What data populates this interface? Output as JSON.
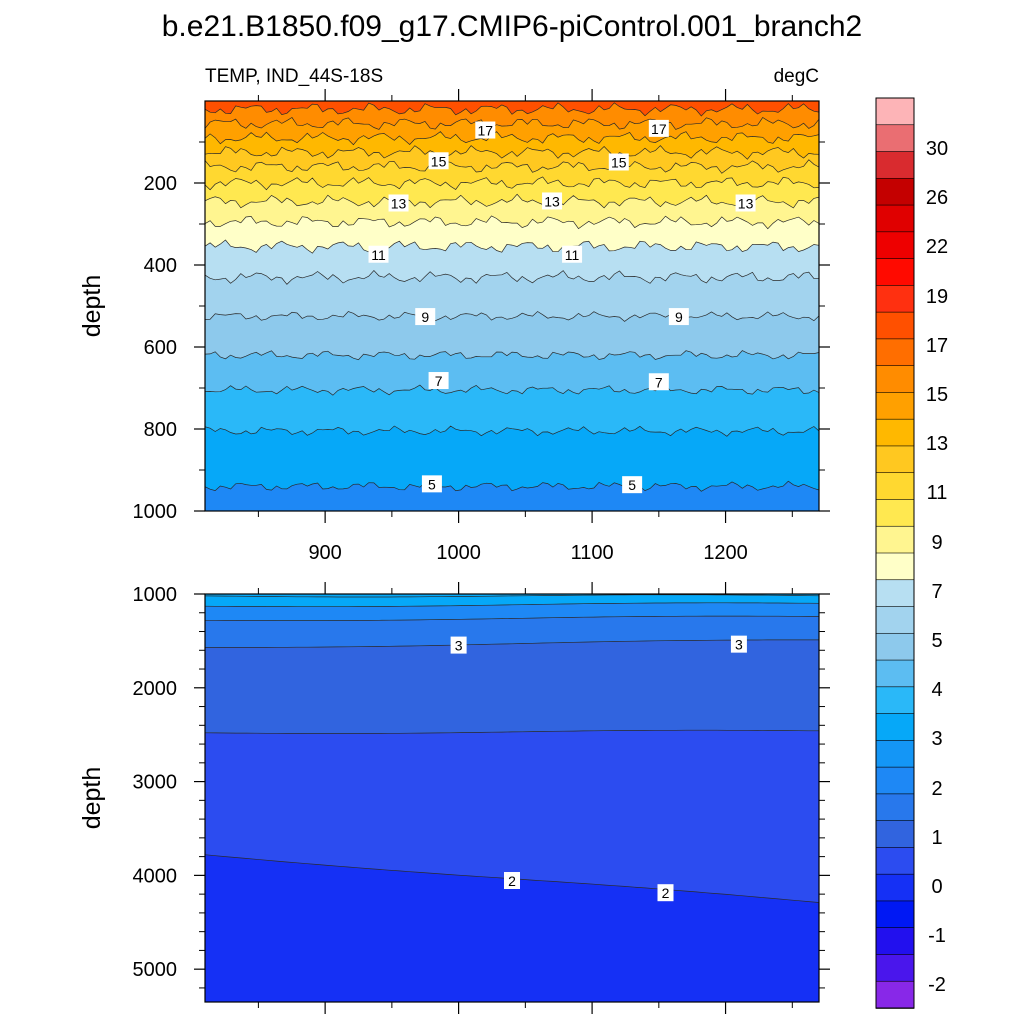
{
  "title": "b.e21.B1850.f09_g17.CMIP6-piControl.001_branch2",
  "left_string": "TEMP, IND_44S-18S",
  "right_string": "degC",
  "chart_data": {
    "type": "contour",
    "variable": "TEMP",
    "region": "IND_44S-18S",
    "units": "degC",
    "x_range": [
      810,
      1270
    ],
    "x_ticks": [
      900,
      1000,
      1100,
      1200
    ],
    "panels": [
      {
        "name": "upper",
        "ylabel": "depth",
        "y_range": [
          0,
          1000
        ],
        "y_reversed": true,
        "y_ticks": [
          200,
          400,
          600,
          800,
          1000
        ],
        "contour_interval": 1,
        "isotherms": [
          {
            "t": 18,
            "depth": 20
          },
          {
            "t": 17,
            "depth": 55
          },
          {
            "t": 16,
            "depth": 90
          },
          {
            "t": 15,
            "depth": 125
          },
          {
            "t": 14,
            "depth": 160
          },
          {
            "t": 13,
            "depth": 200
          },
          {
            "t": 12,
            "depth": 245
          },
          {
            "t": 11,
            "depth": 295
          },
          {
            "t": 10,
            "depth": 355
          },
          {
            "t": 9,
            "depth": 430
          },
          {
            "t": 8,
            "depth": 525
          },
          {
            "t": 7,
            "depth": 620
          },
          {
            "t": 6,
            "depth": 705
          },
          {
            "t": 5,
            "depth": 805
          },
          {
            "t": 4,
            "depth": 940
          }
        ],
        "labels": [
          {
            "text": "17",
            "x": 1020,
            "y": 72
          },
          {
            "text": "17",
            "x": 1150,
            "y": 68
          },
          {
            "text": "15",
            "x": 985,
            "y": 147
          },
          {
            "text": "15",
            "x": 1120,
            "y": 150
          },
          {
            "text": "13",
            "x": 955,
            "y": 250
          },
          {
            "text": "13",
            "x": 1070,
            "y": 245
          },
          {
            "text": "13",
            "x": 1215,
            "y": 250
          },
          {
            "text": "11",
            "x": 940,
            "y": 375
          },
          {
            "text": "11",
            "x": 1085,
            "y": 375
          },
          {
            "text": "9",
            "x": 975,
            "y": 527
          },
          {
            "text": "9",
            "x": 1165,
            "y": 527
          },
          {
            "text": "7",
            "x": 985,
            "y": 683
          },
          {
            "text": "7",
            "x": 1150,
            "y": 686
          },
          {
            "text": "5",
            "x": 980,
            "y": 935
          },
          {
            "text": "5",
            "x": 1130,
            "y": 937
          }
        ]
      },
      {
        "name": "lower",
        "ylabel": "depth",
        "y_range": [
          1000,
          5350
        ],
        "y_reversed": true,
        "y_ticks": [
          1000,
          2000,
          3000,
          4000,
          5000
        ],
        "isotherms": [
          {
            "t": 5,
            "depth": [
              1020,
              1020
            ]
          },
          {
            "t": 4,
            "depth": [
              1130,
              1100
            ]
          },
          {
            "t": 3.5,
            "depth": [
              1280,
              1240
            ]
          },
          {
            "t": 3,
            "depth": [
              1570,
              1490
            ]
          },
          {
            "t": 2.5,
            "depth": [
              2480,
              2460
            ]
          },
          {
            "t": 2,
            "depth": [
              3780,
              4290
            ]
          }
        ],
        "labels": [
          {
            "text": "3",
            "x": 1000,
            "y": 1550
          },
          {
            "text": "3",
            "x": 1210,
            "y": 1540
          },
          {
            "text": "2",
            "x": 1040,
            "y": 4060
          },
          {
            "text": "2",
            "x": 1155,
            "y": 4190
          }
        ]
      }
    ],
    "colorbar": {
      "labels": [
        "30",
        "26",
        "22",
        "19",
        "17",
        "15",
        "13",
        "11",
        "9",
        "7",
        "5",
        "4",
        "3",
        "2",
        "1",
        "0",
        "-1",
        "-2"
      ],
      "colors": [
        "#fdb4b7",
        "#ea6e72",
        "#d92b2f",
        "#c40000",
        "#e00000",
        "#ee0000",
        "#ff0a00",
        "#ff3010",
        "#ff5000",
        "#ff6e00",
        "#ff8c00",
        "#ffa000",
        "#ffb800",
        "#ffc820",
        "#ffd830",
        "#ffe850",
        "#fff590",
        "#ffffc8",
        "#b7dff2",
        "#a2d3ee",
        "#8dc9ec",
        "#5cbdf2",
        "#2ab8f8",
        "#06a8f8",
        "#1496f6",
        "#1e88f5",
        "#2878ec",
        "#3164df",
        "#2c4cf0",
        "#1530f5",
        "#0018f4",
        "#2210ee",
        "#4a16ec",
        "#8828e8"
      ]
    }
  }
}
